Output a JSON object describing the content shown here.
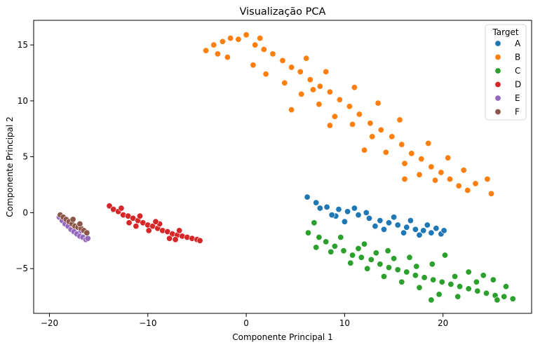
{
  "chart_data": {
    "type": "scatter",
    "title": "Visualização PCA",
    "xlabel": "Componente Principal 1",
    "ylabel": "Componente Principal 2",
    "xlim": [
      -21.6,
      29.0
    ],
    "ylim": [
      -9.0,
      17.2
    ],
    "xticks": [
      -20,
      -10,
      0,
      10,
      20
    ],
    "yticks": [
      -5,
      0,
      5,
      10,
      15
    ],
    "grid": false,
    "legend": {
      "title": "Target",
      "location": "top-right"
    },
    "series": [
      {
        "name": "A",
        "color": "#1f77b4",
        "points": [
          [
            6.2,
            1.4
          ],
          [
            7.1,
            0.9
          ],
          [
            8.2,
            0.5
          ],
          [
            9.4,
            0.3
          ],
          [
            10.3,
            0.1
          ],
          [
            11.4,
            -0.2
          ],
          [
            12.5,
            -0.5
          ],
          [
            13.6,
            -0.7
          ],
          [
            14.5,
            -0.9
          ],
          [
            15.4,
            -1.1
          ],
          [
            16.3,
            -1.3
          ],
          [
            17.2,
            -1.5
          ],
          [
            18.0,
            -1.6
          ],
          [
            18.8,
            -1.8
          ],
          [
            19.8,
            -1.9
          ],
          [
            20.1,
            -1.6
          ],
          [
            9.1,
            -0.3
          ],
          [
            11.0,
            0.4
          ],
          [
            13.1,
            -1.2
          ],
          [
            15.0,
            -0.4
          ],
          [
            16.7,
            -0.7
          ],
          [
            17.6,
            -2.0
          ],
          [
            12.2,
            0.0
          ],
          [
            14.0,
            -1.5
          ],
          [
            18.4,
            -1.1
          ],
          [
            10.0,
            -0.8
          ],
          [
            19.3,
            -1.4
          ],
          [
            16.0,
            -1.8
          ],
          [
            8.7,
            -0.2
          ],
          [
            7.5,
            0.4
          ]
        ]
      },
      {
        "name": "B",
        "color": "#ff7f0e",
        "points": [
          [
            -4.1,
            14.5
          ],
          [
            -3.3,
            15.0
          ],
          [
            -2.4,
            15.3
          ],
          [
            -1.6,
            15.6
          ],
          [
            -0.8,
            15.5
          ],
          [
            0.0,
            15.9
          ],
          [
            0.9,
            15.0
          ],
          [
            1.8,
            14.6
          ],
          [
            2.7,
            14.2
          ],
          [
            3.7,
            13.6
          ],
          [
            4.6,
            13.0
          ],
          [
            5.5,
            12.6
          ],
          [
            6.5,
            11.9
          ],
          [
            7.5,
            11.3
          ],
          [
            8.5,
            10.8
          ],
          [
            9.5,
            10.1
          ],
          [
            10.5,
            9.5
          ],
          [
            11.5,
            8.8
          ],
          [
            12.6,
            8.0
          ],
          [
            13.7,
            7.4
          ],
          [
            14.8,
            6.8
          ],
          [
            15.8,
            6.1
          ],
          [
            16.8,
            5.3
          ],
          [
            17.8,
            4.8
          ],
          [
            18.8,
            4.1
          ],
          [
            19.8,
            3.6
          ],
          [
            20.7,
            3.0
          ],
          [
            21.6,
            2.4
          ],
          [
            22.5,
            2.0
          ],
          [
            23.3,
            2.6
          ],
          [
            24.5,
            3.0
          ],
          [
            24.9,
            1.7
          ],
          [
            -1.9,
            13.9
          ],
          [
            0.7,
            13.2
          ],
          [
            2.0,
            12.4
          ],
          [
            3.9,
            11.6
          ],
          [
            5.6,
            10.6
          ],
          [
            7.4,
            9.7
          ],
          [
            9.0,
            8.6
          ],
          [
            10.8,
            7.9
          ],
          [
            12.8,
            6.8
          ],
          [
            14.2,
            5.4
          ],
          [
            16.1,
            4.4
          ],
          [
            17.6,
            3.4
          ],
          [
            6.1,
            13.8
          ],
          [
            8.1,
            12.6
          ],
          [
            11.0,
            11.2
          ],
          [
            13.4,
            9.8
          ],
          [
            15.6,
            8.3
          ],
          [
            18.5,
            6.2
          ],
          [
            20.5,
            4.9
          ],
          [
            22.1,
            3.8
          ],
          [
            4.6,
            9.2
          ],
          [
            8.5,
            7.8
          ],
          [
            12.0,
            5.6
          ],
          [
            16.1,
            3.0
          ],
          [
            1.4,
            15.6
          ],
          [
            -2.9,
            14.2
          ],
          [
            6.8,
            11.0
          ],
          [
            19.2,
            2.9
          ]
        ]
      },
      {
        "name": "C",
        "color": "#2ca02c",
        "points": [
          [
            6.3,
            -1.8
          ],
          [
            6.9,
            -0.9
          ],
          [
            7.4,
            -2.2
          ],
          [
            8.1,
            -2.6
          ],
          [
            9.0,
            -3.0
          ],
          [
            9.9,
            -3.4
          ],
          [
            10.8,
            -3.8
          ],
          [
            11.7,
            -4.0
          ],
          [
            12.7,
            -4.2
          ],
          [
            13.6,
            -4.6
          ],
          [
            14.5,
            -4.9
          ],
          [
            15.4,
            -5.1
          ],
          [
            16.3,
            -5.3
          ],
          [
            17.2,
            -5.6
          ],
          [
            18.1,
            -5.8
          ],
          [
            19.0,
            -6.0
          ],
          [
            19.9,
            -6.2
          ],
          [
            20.8,
            -6.4
          ],
          [
            21.7,
            -6.6
          ],
          [
            22.6,
            -6.8
          ],
          [
            23.5,
            -7.0
          ],
          [
            24.4,
            -7.2
          ],
          [
            25.3,
            -7.4
          ],
          [
            26.2,
            -7.5
          ],
          [
            27.1,
            -7.7
          ],
          [
            7.1,
            -3.1
          ],
          [
            8.6,
            -3.5
          ],
          [
            10.6,
            -4.5
          ],
          [
            12.3,
            -5.0
          ],
          [
            14.0,
            -5.7
          ],
          [
            15.8,
            -6.2
          ],
          [
            17.6,
            -6.7
          ],
          [
            19.6,
            -7.3
          ],
          [
            21.5,
            -7.5
          ],
          [
            23.4,
            -6.2
          ],
          [
            25.1,
            -6.0
          ],
          [
            26.4,
            -6.6
          ],
          [
            12.0,
            -2.8
          ],
          [
            14.4,
            -3.4
          ],
          [
            16.6,
            -4.0
          ],
          [
            18.9,
            -4.6
          ],
          [
            20.2,
            -3.8
          ],
          [
            22.6,
            -5.3
          ],
          [
            24.1,
            -5.6
          ],
          [
            9.6,
            -2.2
          ],
          [
            11.4,
            -3.2
          ],
          [
            13.2,
            -3.6
          ],
          [
            15.0,
            -4.1
          ],
          [
            17.3,
            -4.8
          ],
          [
            21.2,
            -5.7
          ],
          [
            25.5,
            -7.8
          ],
          [
            18.8,
            -7.8
          ]
        ]
      },
      {
        "name": "D",
        "color": "#d62728",
        "points": [
          [
            -13.9,
            0.6
          ],
          [
            -13.5,
            0.3
          ],
          [
            -13.0,
            0.1
          ],
          [
            -12.5,
            -0.2
          ],
          [
            -12.0,
            -0.3
          ],
          [
            -11.5,
            -0.5
          ],
          [
            -11.0,
            -0.7
          ],
          [
            -10.5,
            -0.9
          ],
          [
            -10.0,
            -1.1
          ],
          [
            -9.5,
            -1.2
          ],
          [
            -9.0,
            -1.4
          ],
          [
            -8.5,
            -1.6
          ],
          [
            -8.0,
            -1.7
          ],
          [
            -7.5,
            -1.9
          ],
          [
            -7.0,
            -2.0
          ],
          [
            -6.5,
            -2.1
          ],
          [
            -6.0,
            -2.2
          ],
          [
            -5.5,
            -2.3
          ],
          [
            -5.0,
            -2.4
          ],
          [
            -4.7,
            -2.5
          ],
          [
            -12.7,
            0.4
          ],
          [
            -11.9,
            -0.9
          ],
          [
            -10.8,
            -0.3
          ],
          [
            -9.9,
            -1.6
          ],
          [
            -8.8,
            -1.0
          ],
          [
            -7.8,
            -2.3
          ],
          [
            -6.8,
            -1.6
          ],
          [
            -11.2,
            -1.2
          ],
          [
            -9.2,
            -0.8
          ],
          [
            -7.2,
            -2.4
          ]
        ]
      },
      {
        "name": "E",
        "color": "#9467bd",
        "points": [
          [
            -19.0,
            -0.4
          ],
          [
            -18.7,
            -0.7
          ],
          [
            -18.4,
            -1.0
          ],
          [
            -18.1,
            -1.2
          ],
          [
            -17.8,
            -1.5
          ],
          [
            -17.5,
            -1.7
          ],
          [
            -17.2,
            -1.9
          ],
          [
            -16.9,
            -2.1
          ],
          [
            -16.6,
            -2.2
          ],
          [
            -16.3,
            -2.4
          ],
          [
            -16.1,
            -2.3
          ],
          [
            -18.9,
            -0.2
          ],
          [
            -17.6,
            -1.1
          ],
          [
            -16.8,
            -1.6
          ]
        ]
      },
      {
        "name": "F",
        "color": "#8c564b",
        "points": [
          [
            -18.9,
            -0.2
          ],
          [
            -18.6,
            -0.4
          ],
          [
            -18.3,
            -0.6
          ],
          [
            -18.0,
            -0.8
          ],
          [
            -17.7,
            -1.0
          ],
          [
            -17.4,
            -1.2
          ],
          [
            -17.1,
            -1.3
          ],
          [
            -16.8,
            -1.4
          ],
          [
            -16.5,
            -1.6
          ],
          [
            -16.2,
            -1.8
          ],
          [
            -17.6,
            -0.6
          ],
          [
            -16.9,
            -1.0
          ]
        ]
      }
    ]
  }
}
